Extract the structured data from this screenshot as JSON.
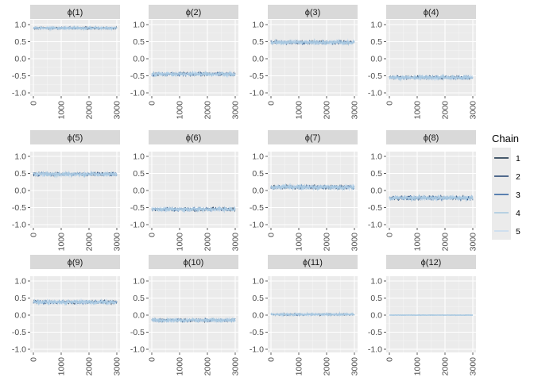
{
  "chart_data": {
    "type": "line",
    "facet_layout": {
      "rows": 3,
      "cols": 4
    },
    "xlim": [
      0,
      3000
    ],
    "ylim": [
      -1.0,
      1.0
    ],
    "x_ticks": [
      0,
      1000,
      2000,
      3000
    ],
    "x_tick_labels": [
      "0",
      "1000",
      "2000",
      "3000"
    ],
    "y_ticks": [
      -1.0,
      -0.5,
      0.0,
      0.5,
      1.0
    ],
    "y_tick_labels": [
      "-1.0",
      "-0.5",
      "0.0",
      "0.5",
      "1.0"
    ],
    "grid": true,
    "legend": {
      "title": "Chain",
      "placement": "right",
      "entries": [
        {
          "label": "1",
          "color": "#132b43"
        },
        {
          "label": "2",
          "color": "#1c3f6e"
        },
        {
          "label": "3",
          "color": "#2a5d9c"
        },
        {
          "label": "4",
          "color": "#a6c8e0"
        },
        {
          "label": "5",
          "color": "#c6dbef"
        }
      ]
    },
    "panels": [
      {
        "label": "ϕ(1)",
        "x_start": 0,
        "x_end": 3000,
        "mean": 0.9,
        "spread": 0.05
      },
      {
        "label": "ϕ(2)",
        "x_start": 0,
        "x_end": 3000,
        "mean": -0.45,
        "spread": 0.08
      },
      {
        "label": "ϕ(3)",
        "x_start": 0,
        "x_end": 3000,
        "mean": 0.48,
        "spread": 0.08
      },
      {
        "label": "ϕ(4)",
        "x_start": 0,
        "x_end": 3000,
        "mean": -0.55,
        "spread": 0.08
      },
      {
        "label": "ϕ(5)",
        "x_start": 0,
        "x_end": 3000,
        "mean": 0.48,
        "spread": 0.08
      },
      {
        "label": "ϕ(6)",
        "x_start": 0,
        "x_end": 3000,
        "mean": -0.55,
        "spread": 0.08
      },
      {
        "label": "ϕ(7)",
        "x_start": 0,
        "x_end": 3000,
        "mean": 0.1,
        "spread": 0.09
      },
      {
        "label": "ϕ(8)",
        "x_start": 0,
        "x_end": 3000,
        "mean": -0.22,
        "spread": 0.09
      },
      {
        "label": "ϕ(9)",
        "x_start": 0,
        "x_end": 3000,
        "mean": 0.38,
        "spread": 0.08
      },
      {
        "label": "ϕ(10)",
        "x_start": 0,
        "x_end": 3000,
        "mean": -0.15,
        "spread": 0.07
      },
      {
        "label": "ϕ(11)",
        "x_start": 0,
        "x_end": 3000,
        "mean": 0.02,
        "spread": 0.04
      },
      {
        "label": "ϕ(12)",
        "x_start": 0,
        "x_end": 3000,
        "mean": 0.0,
        "spread": 0.01
      }
    ]
  }
}
